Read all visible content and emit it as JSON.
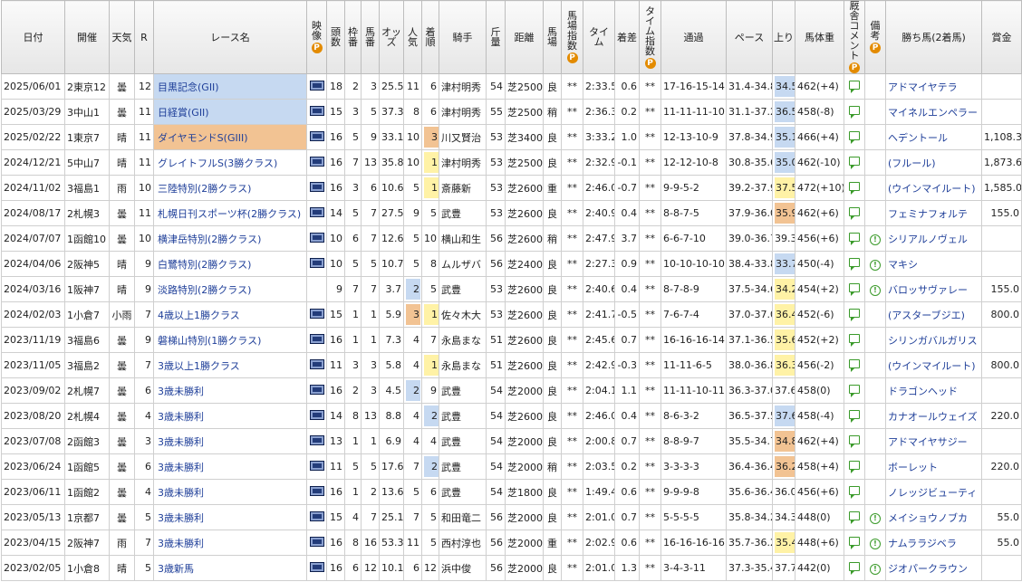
{
  "header": [
    "日付",
    "開催",
    "天気",
    "R",
    "レース名",
    "映像",
    "頭数",
    "枠番",
    "馬番",
    "オッズ",
    "人気",
    "着順",
    "騎手",
    "斤量",
    "距離",
    "馬場",
    "馬場指数",
    "タイム",
    "着差",
    "タイム指数",
    "通過",
    "ペース",
    "上り",
    "馬体重",
    "厩舎コメント",
    "備考",
    "勝ち馬(2着馬)",
    "賞金"
  ],
  "rows": [
    {
      "cells": [
        "2025/06/01",
        "2東京12",
        "曇",
        "12",
        "目黒記念(GII)",
        "18",
        "2",
        "3",
        "25.5",
        "11",
        "6",
        "津村明秀",
        "54",
        "芝2500",
        "良",
        "**",
        "2:33.5",
        "0.6",
        "**",
        "17-16-15-14",
        "31.4-34.8",
        "34.5",
        "462(+4)",
        "アドマイヤテラ",
        ""
      ],
      "video": true,
      "note": false,
      "colors": {
        "4": "#c6d9f1",
        "21": "#c6d9f1"
      }
    },
    {
      "cells": [
        "2025/03/29",
        "3中山1",
        "曇",
        "11",
        "日経賞(GII)",
        "15",
        "3",
        "5",
        "37.3",
        "8",
        "6",
        "津村明秀",
        "55",
        "芝2500",
        "稍",
        "**",
        "2:36.3",
        "0.2",
        "**",
        "11-11-11-10",
        "31.1-37.2",
        "36.5",
        "458(-8)",
        "マイネルエンペラー",
        ""
      ],
      "video": true,
      "note": false,
      "colors": {
        "4": "#c6d9f1",
        "21": "#c6d9f1"
      }
    },
    {
      "cells": [
        "2025/02/22",
        "1東京7",
        "晴",
        "11",
        "ダイヤモンドS(GIII)",
        "16",
        "5",
        "9",
        "33.1",
        "10",
        "3",
        "川又賢治",
        "53",
        "芝3400",
        "良",
        "**",
        "3:33.2",
        "1.0",
        "**",
        "12-13-10-9",
        "37.8-34.9",
        "35.1",
        "466(+4)",
        "ヘデントール",
        "1,108.3"
      ],
      "video": true,
      "note": false,
      "colors": {
        "4": "#f2c393",
        "10": "#f2c393",
        "21": "#c6d9f1"
      }
    },
    {
      "cells": [
        "2024/12/21",
        "5中山7",
        "晴",
        "11",
        "グレイトフルS(3勝クラス)",
        "16",
        "7",
        "13",
        "35.8",
        "10",
        "1",
        "津村明秀",
        "53",
        "芝2500",
        "良",
        "**",
        "2:32.9",
        "-0.1",
        "**",
        "12-12-10-8",
        "30.8-35.6",
        "35.0",
        "462(-10)",
        "(フルール)",
        "1,873.6"
      ],
      "video": true,
      "note": false,
      "colors": {
        "10": "#fff2a6",
        "21": "#c6d9f1"
      }
    },
    {
      "cells": [
        "2024/11/02",
        "3福島1",
        "雨",
        "10",
        "三陸特別(2勝クラス)",
        "16",
        "3",
        "6",
        "10.6",
        "5",
        "1",
        "斎藤新",
        "53",
        "芝2600",
        "重",
        "**",
        "2:46.0",
        "-0.7",
        "**",
        "9-9-5-2",
        "39.2-37.9",
        "37.5",
        "472(+10)",
        "(ウインマイルート)",
        "1,585.0"
      ],
      "video": true,
      "note": false,
      "colors": {
        "10": "#fff2a6",
        "21": "#fff2a6"
      }
    },
    {
      "cells": [
        "2024/08/17",
        "2札幌3",
        "曇",
        "11",
        "札幌日刊スポーツ杯(2勝クラス)",
        "14",
        "5",
        "7",
        "27.5",
        "9",
        "5",
        "武豊",
        "53",
        "芝2600",
        "良",
        "**",
        "2:40.9",
        "0.4",
        "**",
        "8-8-7-5",
        "37.9-36.0",
        "35.9",
        "462(+6)",
        "フェミナフォルテ",
        "155.0"
      ],
      "video": true,
      "note": false,
      "colors": {
        "21": "#f2c393"
      }
    },
    {
      "cells": [
        "2024/07/07",
        "1函館10",
        "曇",
        "10",
        "横津岳特別(2勝クラス)",
        "10",
        "6",
        "7",
        "12.6",
        "5",
        "10",
        "横山和生",
        "56",
        "芝2600",
        "稍",
        "**",
        "2:47.9",
        "3.7",
        "**",
        "6-6-7-10",
        "39.0-36.7",
        "39.3",
        "456(+6)",
        "シリアルノヴェル",
        ""
      ],
      "video": true,
      "note": true,
      "colors": {}
    },
    {
      "cells": [
        "2024/04/06",
        "2阪神5",
        "晴",
        "9",
        "白鷺特別(2勝クラス)",
        "10",
        "5",
        "5",
        "10.7",
        "5",
        "8",
        "ムルザバ",
        "56",
        "芝2400",
        "良",
        "**",
        "2:27.3",
        "0.9",
        "**",
        "10-10-10-10",
        "38.4-33.8",
        "33.7",
        "450(-4)",
        "マキシ",
        ""
      ],
      "video": true,
      "note": true,
      "colors": {
        "21": "#c6d9f1"
      }
    },
    {
      "cells": [
        "2024/03/16",
        "1阪神7",
        "晴",
        "9",
        "淡路特別(2勝クラス)",
        "9",
        "7",
        "7",
        "3.7",
        "2",
        "5",
        "武豊",
        "53",
        "芝2600",
        "良",
        "**",
        "2:40.6",
        "0.4",
        "**",
        "8-7-8-9",
        "37.5-34.6",
        "34.2",
        "454(+2)",
        "バロッサヴァレー",
        "155.0"
      ],
      "video": false,
      "note": true,
      "colors": {
        "9": "#c6d9f1",
        "21": "#fff2a6"
      }
    },
    {
      "cells": [
        "2024/02/03",
        "1小倉7",
        "小雨",
        "7",
        "4歳以上1勝クラス",
        "15",
        "1",
        "1",
        "5.9",
        "3",
        "1",
        "佐々木大",
        "53",
        "芝2600",
        "良",
        "**",
        "2:41.7",
        "-0.5",
        "**",
        "7-6-7-4",
        "37.0-37.0",
        "36.4",
        "452(-6)",
        "(アスターブジエ)",
        "800.0"
      ],
      "video": true,
      "note": false,
      "colors": {
        "9": "#f2c393",
        "10": "#fff2a6",
        "21": "#fff2a6"
      }
    },
    {
      "cells": [
        "2023/11/19",
        "3福島6",
        "曇",
        "9",
        "磐梯山特別(1勝クラス)",
        "16",
        "1",
        "1",
        "7.3",
        "4",
        "7",
        "永島まな",
        "51",
        "芝2600",
        "良",
        "**",
        "2:45.6",
        "0.7",
        "**",
        "16-16-16-14",
        "37.1-36.5",
        "35.6",
        "452(+2)",
        "シリンガバルガリス",
        ""
      ],
      "video": true,
      "note": false,
      "colors": {
        "21": "#fff2a6"
      }
    },
    {
      "cells": [
        "2023/11/05",
        "3福島2",
        "曇",
        "7",
        "3歳以上1勝クラス",
        "11",
        "3",
        "3",
        "5.8",
        "4",
        "1",
        "永島まな",
        "51",
        "芝2600",
        "良",
        "**",
        "2:42.9",
        "-0.3",
        "**",
        "11-11-6-5",
        "38.0-36.8",
        "36.3",
        "456(-2)",
        "(ウインマイルート)",
        "800.0"
      ],
      "video": true,
      "note": false,
      "colors": {
        "10": "#fff2a6",
        "21": "#fff2a6"
      }
    },
    {
      "cells": [
        "2023/09/02",
        "2札幌7",
        "曇",
        "6",
        "3歳未勝利",
        "16",
        "2",
        "3",
        "4.5",
        "2",
        "9",
        "武豊",
        "54",
        "芝2000",
        "良",
        "**",
        "2:04.1",
        "1.1",
        "**",
        "11-11-10-11",
        "36.3-37.0",
        "37.6",
        "458(0)",
        "ドラゴンヘッド",
        ""
      ],
      "video": true,
      "note": false,
      "colors": {
        "9": "#c6d9f1"
      }
    },
    {
      "cells": [
        "2023/08/20",
        "2札幌4",
        "曇",
        "4",
        "3歳未勝利",
        "14",
        "8",
        "13",
        "8.8",
        "4",
        "2",
        "武豊",
        "54",
        "芝2600",
        "良",
        "**",
        "2:46.0",
        "0.4",
        "**",
        "8-6-3-2",
        "36.5-37.5",
        "37.6",
        "458(-4)",
        "カナオールウェイズ",
        "220.0"
      ],
      "video": true,
      "note": false,
      "colors": {
        "10": "#c6d9f1",
        "21": "#c6d9f1"
      }
    },
    {
      "cells": [
        "2023/07/08",
        "2函館3",
        "曇",
        "3",
        "3歳未勝利",
        "13",
        "1",
        "1",
        "6.9",
        "4",
        "4",
        "武豊",
        "54",
        "芝2000",
        "良",
        "**",
        "2:00.8",
        "0.7",
        "**",
        "8-8-9-7",
        "35.5-34.7",
        "34.8",
        "462(+4)",
        "アドマイヤサジー",
        ""
      ],
      "video": true,
      "note": false,
      "colors": {
        "21": "#f2c393"
      }
    },
    {
      "cells": [
        "2023/06/24",
        "1函館5",
        "曇",
        "6",
        "3歳未勝利",
        "11",
        "5",
        "5",
        "17.6",
        "7",
        "2",
        "武豊",
        "54",
        "芝2000",
        "稍",
        "**",
        "2:03.5",
        "0.2",
        "**",
        "3-3-3-3",
        "36.4-36.4",
        "36.2",
        "458(+4)",
        "ボーレット",
        "220.0"
      ],
      "video": true,
      "note": false,
      "colors": {
        "10": "#c6d9f1",
        "21": "#f2c393"
      }
    },
    {
      "cells": [
        "2023/06/11",
        "1函館2",
        "曇",
        "4",
        "3歳未勝利",
        "16",
        "1",
        "2",
        "13.6",
        "5",
        "6",
        "武豊",
        "54",
        "芝1800",
        "良",
        "**",
        "1:49.4",
        "0.6",
        "**",
        "9-9-9-8",
        "35.6-36.4",
        "36.0",
        "456(+6)",
        "ノレッジビューティ",
        ""
      ],
      "video": true,
      "note": false,
      "colors": {}
    },
    {
      "cells": [
        "2023/05/13",
        "1京都7",
        "曇",
        "5",
        "3歳未勝利",
        "15",
        "4",
        "7",
        "25.1",
        "7",
        "5",
        "和田竜二",
        "56",
        "芝2000",
        "良",
        "**",
        "2:01.0",
        "0.7",
        "**",
        "5-5-5-5",
        "35.8-34.2",
        "34.3",
        "448(0)",
        "メイショウノブカ",
        "55.0"
      ],
      "video": true,
      "note": true,
      "colors": {}
    },
    {
      "cells": [
        "2023/04/15",
        "2阪神7",
        "雨",
        "7",
        "3歳未勝利",
        "16",
        "8",
        "16",
        "53.3",
        "11",
        "5",
        "西村淳也",
        "56",
        "芝2000",
        "重",
        "**",
        "2:02.9",
        "0.6",
        "**",
        "16-16-16-16",
        "35.7-36.2",
        "35.4",
        "448(+6)",
        "ナムララジベラ",
        "55.0"
      ],
      "video": true,
      "note": true,
      "colors": {
        "21": "#fff2a6"
      }
    },
    {
      "cells": [
        "2023/02/05",
        "1小倉8",
        "晴",
        "5",
        "3歳新馬",
        "16",
        "6",
        "12",
        "10.1",
        "6",
        "12",
        "浜中俊",
        "56",
        "芝2000",
        "良",
        "**",
        "2:01.0",
        "1.3",
        "**",
        "3-4-3-11",
        "37.3-35.4",
        "37.7",
        "442(0)",
        "ジオパークラウン",
        ""
      ],
      "video": true,
      "note": true,
      "colors": {}
    }
  ]
}
